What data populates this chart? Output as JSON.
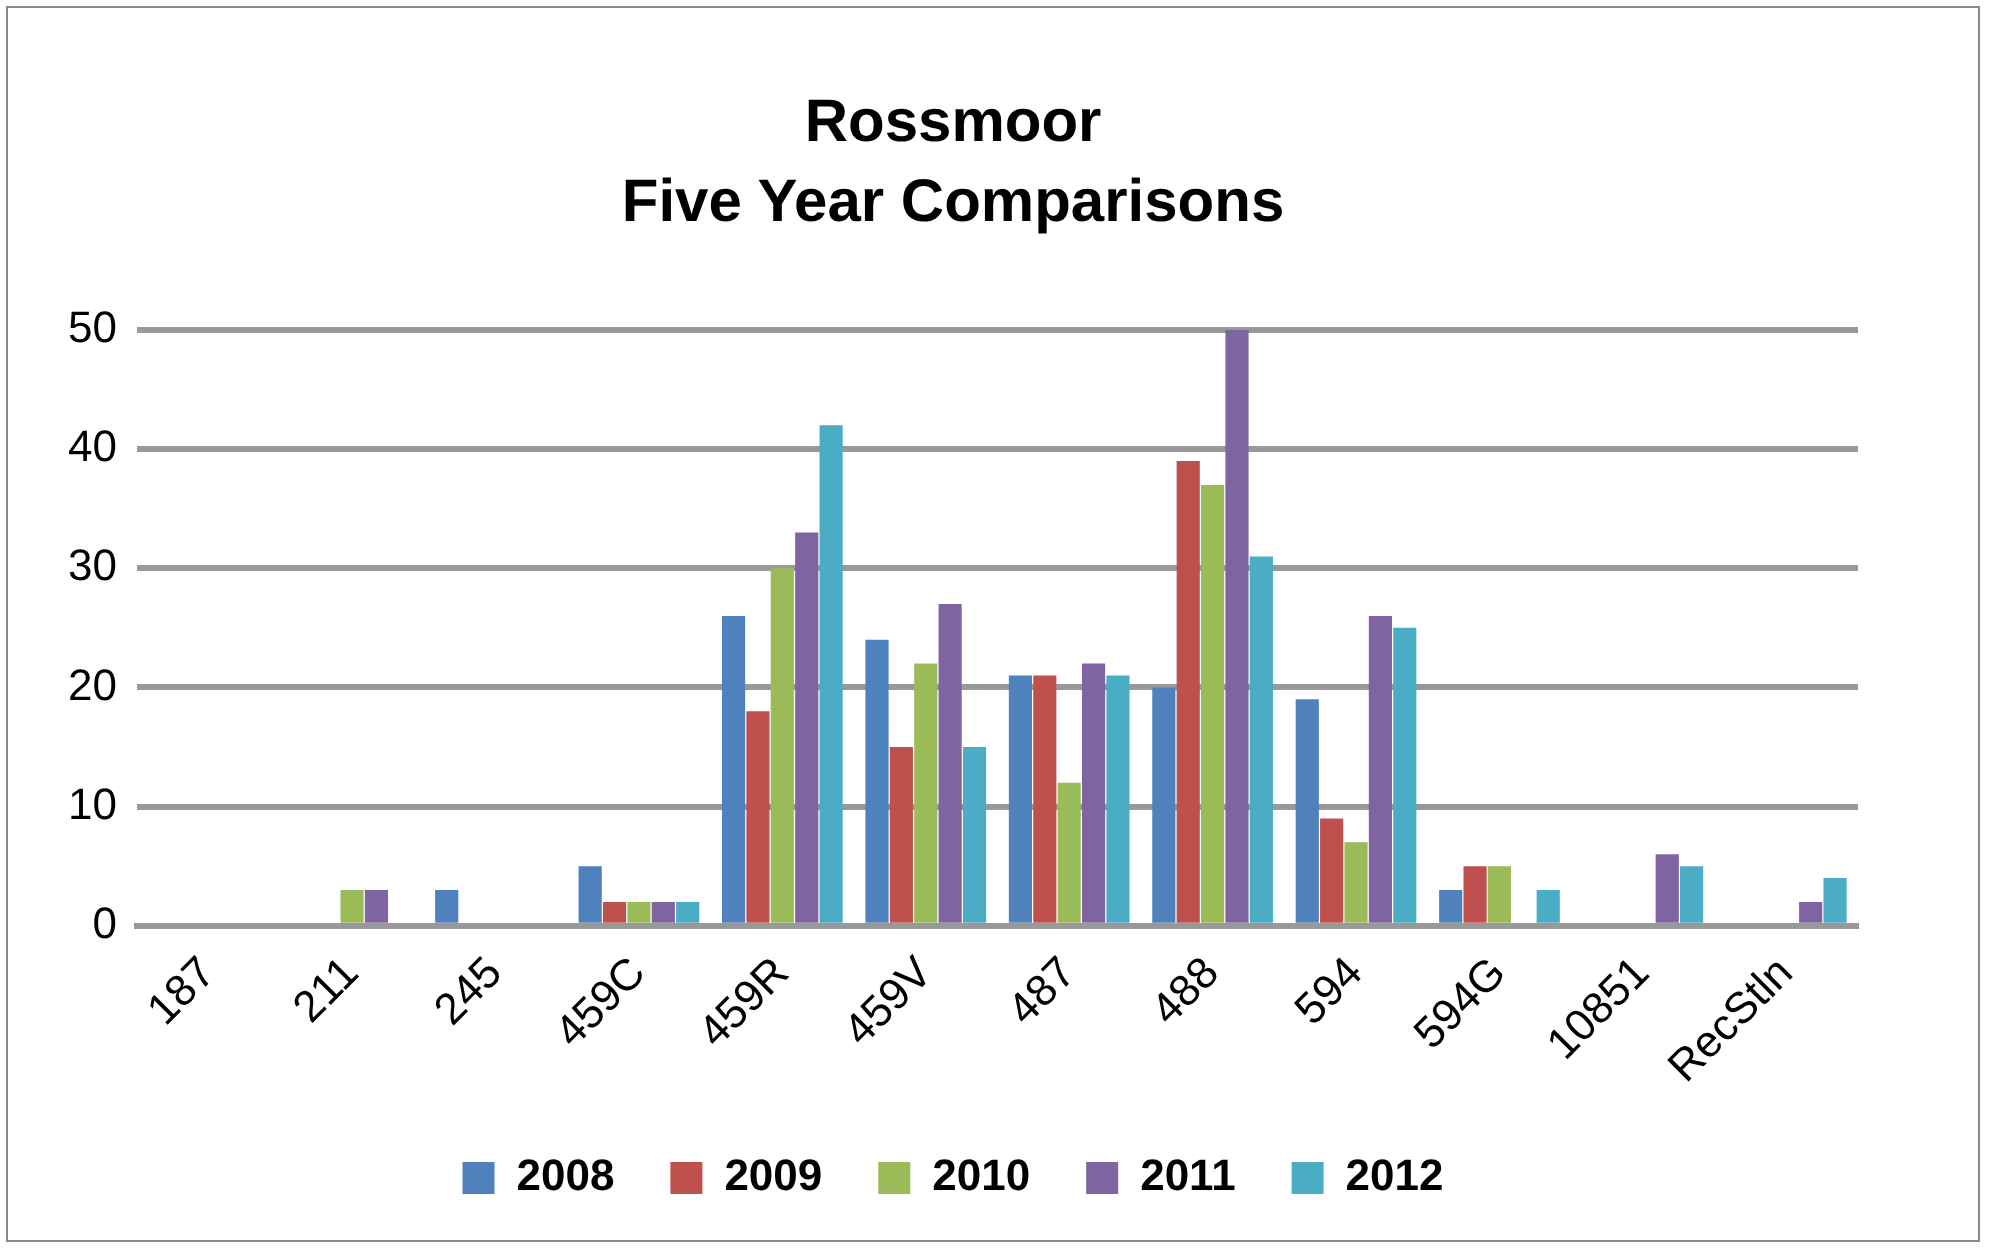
{
  "chart_data": {
    "type": "bar",
    "title": "Rossmoor",
    "subtitle": "Five Year Comparisons",
    "categories": [
      "187",
      "211",
      "245",
      "459C",
      "459R",
      "459V",
      "487",
      "488",
      "594",
      "594G",
      "10851",
      "RecStln"
    ],
    "series": [
      {
        "name": "2008",
        "color": "#4f81bd",
        "values": [
          0,
          0,
          3,
          5,
          26,
          24,
          21,
          20,
          19,
          3,
          0,
          0
        ]
      },
      {
        "name": "2009",
        "color": "#c0504d",
        "values": [
          0,
          0,
          0,
          2,
          18,
          15,
          21,
          39,
          9,
          5,
          0,
          0
        ]
      },
      {
        "name": "2010",
        "color": "#9bbb59",
        "values": [
          0,
          3,
          0,
          2,
          30,
          22,
          12,
          37,
          7,
          5,
          0,
          0
        ]
      },
      {
        "name": "2011",
        "color": "#8064a2",
        "values": [
          0,
          3,
          0,
          2,
          33,
          27,
          22,
          50,
          26,
          0,
          6,
          2
        ]
      },
      {
        "name": "2012",
        "color": "#4bacc6",
        "values": [
          0,
          0,
          0,
          2,
          42,
          15,
          21,
          31,
          25,
          3,
          5,
          4
        ]
      }
    ],
    "ylim": [
      0,
      50
    ],
    "yticks": [
      0,
      10,
      20,
      30,
      40,
      50
    ],
    "grid": "y",
    "legend": "bottom"
  }
}
